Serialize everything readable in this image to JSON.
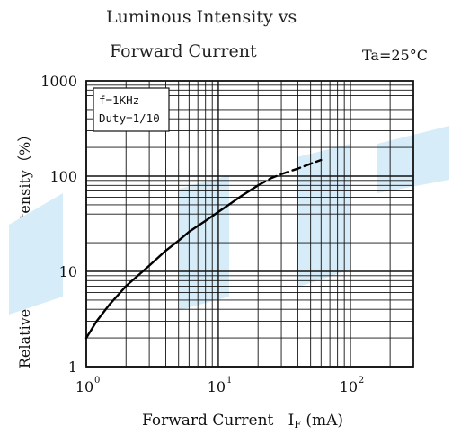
{
  "chart_data": {
    "type": "line",
    "title_lines": [
      "Luminous Intensity vs",
      "Forward Current"
    ],
    "condition": "Ta=25°C",
    "annotation_lines": [
      "f=1KHz",
      "Duty=1/10"
    ],
    "ylabel": "Relative luminous intensity（%）",
    "xlabel": {
      "text": "Forward Current",
      "symbol": "I",
      "subscript": "F",
      "unit": "(mA)"
    },
    "x_scale": "log",
    "y_scale": "log",
    "xlim": [
      1,
      300
    ],
    "ylim": [
      1,
      1000
    ],
    "x_ticks": [
      {
        "value": 1,
        "base": "10",
        "exp": "0"
      },
      {
        "value": 10,
        "base": "10",
        "exp": "1"
      },
      {
        "value": 100,
        "base": "10",
        "exp": "2"
      }
    ],
    "y_ticks": [
      {
        "value": 1,
        "label": "1"
      },
      {
        "value": 10,
        "label": "10"
      },
      {
        "value": 100,
        "label": "100"
      },
      {
        "value": 1000,
        "label": "1000"
      }
    ],
    "grid": true,
    "series": [
      {
        "style": "solid",
        "x": [
          1,
          1.2,
          1.5,
          2,
          3,
          4,
          5,
          6,
          8,
          10,
          12,
          15,
          20
        ],
        "y": [
          2,
          3,
          4.5,
          7,
          11.5,
          16.5,
          21,
          26,
          34,
          42,
          50,
          62,
          80
        ]
      },
      {
        "style": "dashed",
        "x": [
          20,
          25,
          30,
          40,
          50,
          60
        ],
        "y": [
          80,
          95,
          105,
          120,
          135,
          148
        ]
      }
    ]
  }
}
